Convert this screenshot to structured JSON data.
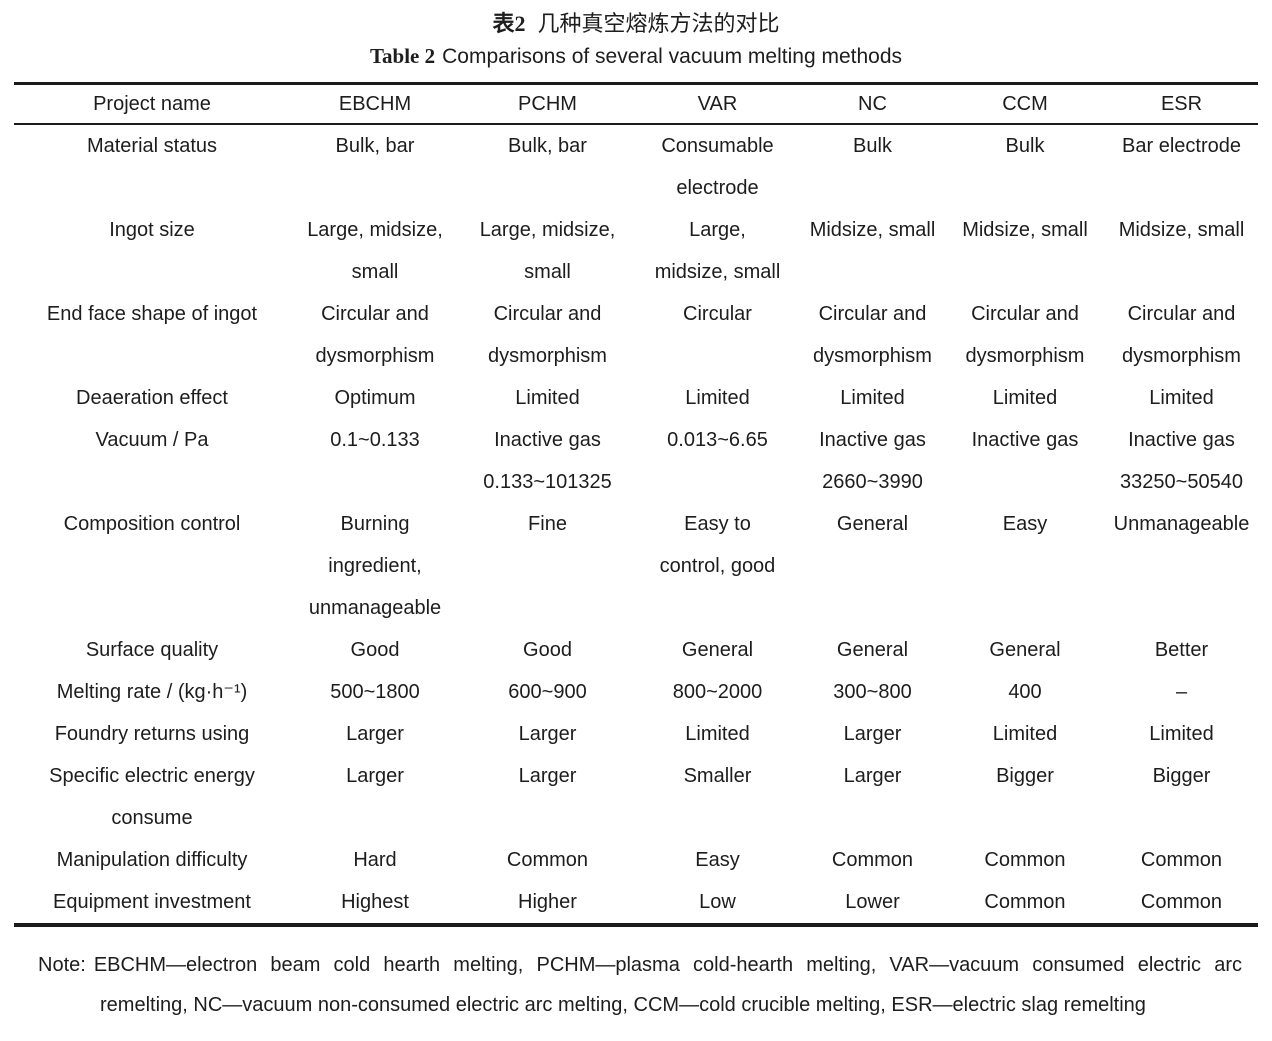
{
  "caption": {
    "zh_label": "表2",
    "zh_text": "几种真空熔炼方法的对比",
    "en_label": "Table 2",
    "en_text": "Comparisons of several vacuum melting methods"
  },
  "table": {
    "columns": [
      "Project name",
      "EBCHM",
      "PCHM",
      "VAR",
      "NC",
      "CCM",
      "ESR"
    ],
    "rows": [
      {
        "label": "Material status",
        "cells": [
          "Bulk, bar",
          "Bulk, bar",
          "Consumable\nelectrode",
          "Bulk",
          "Bulk",
          "Bar electrode"
        ]
      },
      {
        "label": "Ingot size",
        "cells": [
          "Large, midsize,\nsmall",
          "Large, midsize,\nsmall",
          "Large,\nmidsize, small",
          "Midsize, small",
          "Midsize, small",
          "Midsize, small"
        ]
      },
      {
        "label": "End face shape of ingot",
        "cells": [
          "Circular and\ndysmorphism",
          "Circular and\ndysmorphism",
          "Circular",
          "Circular and\ndysmorphism",
          "Circular and\ndysmorphism",
          "Circular and\ndysmorphism"
        ]
      },
      {
        "label": "Deaeration effect",
        "cells": [
          "Optimum",
          "Limited",
          "Limited",
          "Limited",
          "Limited",
          "Limited"
        ]
      },
      {
        "label": "Vacuum / Pa",
        "cells": [
          "0.1~0.133",
          "Inactive gas\n0.133~101325",
          "0.013~6.65",
          "Inactive gas\n2660~3990",
          "Inactive gas",
          "Inactive gas\n33250~50540"
        ]
      },
      {
        "label": "Composition control",
        "cells": [
          "Burning\ningredient,\nunmanageable",
          "Fine",
          "Easy to\ncontrol, good",
          "General",
          "Easy",
          "Unmanageable"
        ]
      },
      {
        "label": "Surface quality",
        "cells": [
          "Good",
          "Good",
          "General",
          "General",
          "General",
          "Better"
        ]
      },
      {
        "label": "Melting rate / (kg·h⁻¹)",
        "cells": [
          "500~1800",
          "600~900",
          "800~2000",
          "300~800",
          "400",
          "–"
        ]
      },
      {
        "label": "Foundry returns using",
        "cells": [
          "Larger",
          "Larger",
          "Limited",
          "Larger",
          "Limited",
          "Limited"
        ]
      },
      {
        "label": "Specific electric energy\nconsume",
        "cells": [
          "Larger",
          "Larger",
          "Smaller",
          "Larger",
          "Bigger",
          "Bigger"
        ]
      },
      {
        "label": "Manipulation difficulty",
        "cells": [
          "Hard",
          "Common",
          "Easy",
          "Common",
          "Common",
          "Common"
        ]
      },
      {
        "label": "Equipment investment",
        "cells": [
          "Highest",
          "Higher",
          "Low",
          "Lower",
          "Common",
          "Common"
        ]
      }
    ]
  },
  "note": {
    "label": "Note:",
    "text": "EBCHM—electron beam cold hearth melting, PCHM—plasma cold-hearth melting, VAR—vacuum consumed electric arc remelting, NC—vacuum non-consumed electric arc melting, CCM—cold crucible melting, ESR—electric slag remelting"
  }
}
